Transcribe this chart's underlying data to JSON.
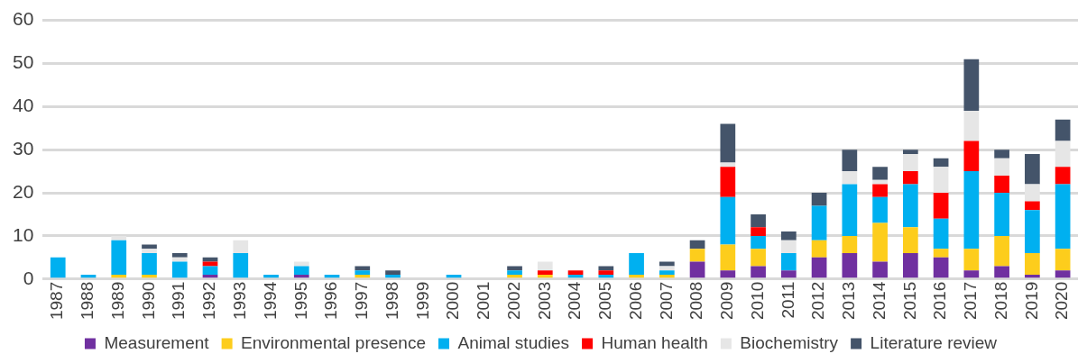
{
  "chart_data": {
    "type": "bar",
    "stacked": true,
    "categories": [
      "1987",
      "1988",
      "1989",
      "1990",
      "1991",
      "1992",
      "1993",
      "1994",
      "1995",
      "1996",
      "1997",
      "1998",
      "1999",
      "2000",
      "2001",
      "2002",
      "2003",
      "2004",
      "2005",
      "2006",
      "2007",
      "2008",
      "2009",
      "2010",
      "2011",
      "2012",
      "2013",
      "2014",
      "2015",
      "2016",
      "2017",
      "2018",
      "2019",
      "2020"
    ],
    "series": [
      {
        "name": "Measurement",
        "color": "#7030a0",
        "values": [
          0,
          0,
          0,
          0,
          0,
          1,
          0,
          0,
          1,
          0,
          0,
          0,
          0,
          0,
          0,
          0,
          0,
          0,
          0,
          0,
          0,
          4,
          2,
          3,
          2,
          5,
          6,
          4,
          6,
          5,
          2,
          3,
          1,
          2
        ]
      },
      {
        "name": "Environmental presence",
        "color": "#fdcd1c",
        "values": [
          0,
          0,
          1,
          1,
          0,
          0,
          0,
          0,
          0,
          0,
          1,
          0,
          0,
          0,
          0,
          1,
          1,
          0,
          0,
          1,
          1,
          3,
          6,
          4,
          0,
          4,
          4,
          9,
          6,
          2,
          5,
          7,
          5,
          5
        ]
      },
      {
        "name": "Animal studies",
        "color": "#00b0f0",
        "values": [
          5,
          1,
          8,
          5,
          4,
          2,
          6,
          1,
          2,
          1,
          1,
          1,
          0,
          1,
          0,
          1,
          0,
          1,
          1,
          5,
          1,
          0,
          11,
          3,
          4,
          8,
          12,
          6,
          10,
          7,
          18,
          10,
          10,
          15
        ]
      },
      {
        "name": "Human health",
        "color": "#ff0000",
        "values": [
          0,
          0,
          0,
          0,
          0,
          1,
          0,
          0,
          0,
          0,
          0,
          0,
          0,
          0,
          0,
          0,
          1,
          1,
          1,
          0,
          0,
          0,
          7,
          2,
          0,
          0,
          0,
          3,
          3,
          6,
          7,
          4,
          2,
          4
        ]
      },
      {
        "name": "Biochemistry",
        "color": "#e6e6e6",
        "values": [
          0,
          0,
          1,
          1,
          1,
          0,
          3,
          0,
          1,
          0,
          0,
          0,
          0,
          0,
          0,
          0,
          2,
          0,
          0,
          0,
          1,
          0,
          1,
          0,
          3,
          0,
          3,
          1,
          4,
          6,
          7,
          4,
          4,
          6
        ]
      },
      {
        "name": "Literature review",
        "color": "#44546a",
        "values": [
          0,
          0,
          0,
          1,
          1,
          1,
          0,
          0,
          0,
          0,
          1,
          1,
          0,
          0,
          0,
          1,
          0,
          0,
          1,
          0,
          1,
          2,
          9,
          3,
          2,
          3,
          5,
          3,
          1,
          2,
          12,
          2,
          7,
          5
        ]
      }
    ],
    "ylim": [
      0,
      60
    ],
    "yticks": [
      0,
      10,
      20,
      30,
      40,
      50,
      60
    ],
    "grid": "y",
    "legend": "bottom"
  }
}
